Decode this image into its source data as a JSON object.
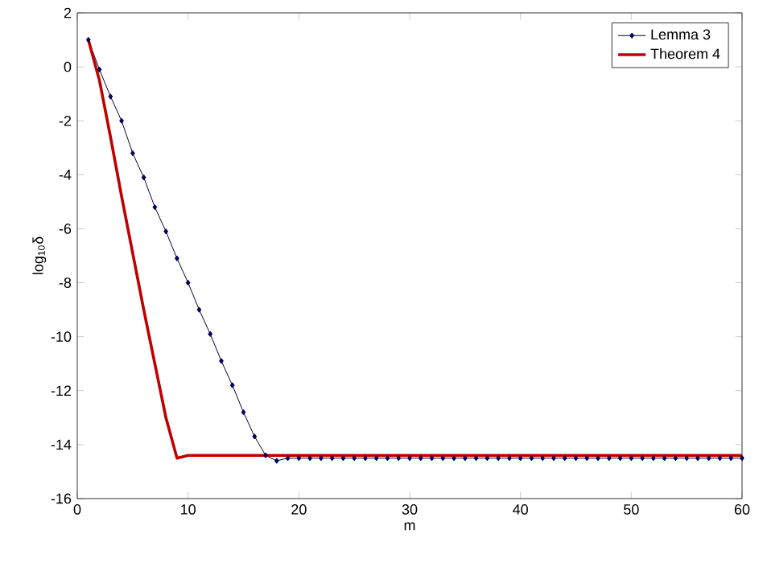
{
  "chart_data": {
    "type": "line",
    "xlabel": "m",
    "ylabel": "log$_{10}$δ",
    "xlim": [
      0,
      60
    ],
    "ylim": [
      -16,
      2
    ],
    "xticks": [
      0,
      10,
      20,
      30,
      40,
      50,
      60
    ],
    "yticks": [
      -16,
      -14,
      -12,
      -10,
      -8,
      -6,
      -4,
      -2,
      0,
      2
    ],
    "grid": false,
    "legend": "top right",
    "series": [
      {
        "name": "Lemma 3",
        "color": "#00007f",
        "marker": "diamond",
        "x": [
          1,
          2,
          3,
          4,
          5,
          6,
          7,
          8,
          9,
          10,
          11,
          12,
          13,
          14,
          15,
          16,
          17,
          18,
          19,
          20,
          21,
          22,
          23,
          24,
          25,
          26,
          27,
          28,
          29,
          30,
          31,
          32,
          33,
          34,
          35,
          36,
          37,
          38,
          39,
          40,
          41,
          42,
          43,
          44,
          45,
          46,
          47,
          48,
          49,
          50,
          51,
          52,
          53,
          54,
          55,
          56,
          57,
          58,
          59,
          60
        ],
        "values": [
          1,
          -0.1,
          -1.1,
          -2,
          -3.2,
          -4.1,
          -5.2,
          -6.1,
          -7.1,
          -8,
          -9,
          -9.9,
          -10.9,
          -11.8,
          -12.8,
          -13.7,
          -14.4,
          -14.6,
          -14.5,
          -14.5,
          -14.5,
          -14.5,
          -14.5,
          -14.5,
          -14.5,
          -14.5,
          -14.5,
          -14.5,
          -14.5,
          -14.5,
          -14.5,
          -14.5,
          -14.5,
          -14.5,
          -14.5,
          -14.5,
          -14.5,
          -14.5,
          -14.5,
          -14.5,
          -14.5,
          -14.5,
          -14.5,
          -14.5,
          -14.5,
          -14.5,
          -14.5,
          -14.5,
          -14.5,
          -14.5,
          -14.5,
          -14.5,
          -14.5,
          -14.5,
          -14.5,
          -14.5,
          -14.5,
          -14.5,
          -14.5,
          -14.5
        ]
      },
      {
        "name": "Theorem 4",
        "color": "#c00000",
        "marker": "none",
        "x": [
          1,
          2,
          3,
          4,
          5,
          6,
          7,
          8,
          9,
          10,
          60
        ],
        "values": [
          1,
          -0.5,
          -2.6,
          -4.8,
          -6.9,
          -9,
          -11,
          -13,
          -14.5,
          -14.4,
          -14.4
        ]
      }
    ]
  }
}
